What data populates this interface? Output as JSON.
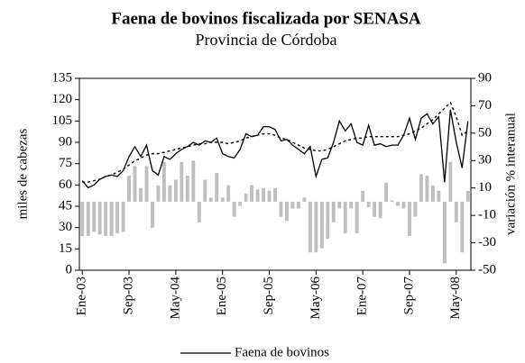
{
  "chart_data": {
    "type": "combo",
    "title": "Faena de bovinos fiscalizada por SENASA",
    "subtitle": "Provincia de Córdoba",
    "ylabel": "miles de cabezas",
    "y2label": "variación % interanual",
    "categories": [
      "Ene-03",
      null,
      null,
      null,
      null,
      null,
      null,
      null,
      "Sep-03",
      null,
      null,
      null,
      null,
      null,
      null,
      null,
      "May-04",
      null,
      null,
      null,
      null,
      null,
      null,
      null,
      "Ene-05",
      null,
      null,
      null,
      null,
      null,
      null,
      null,
      "Sep-05",
      null,
      null,
      null,
      null,
      null,
      null,
      null,
      "May-06",
      null,
      null,
      null,
      null,
      null,
      null,
      null,
      "Ene-07",
      null,
      null,
      null,
      null,
      null,
      null,
      null,
      "Sep-07",
      null,
      null,
      null,
      null,
      null,
      null,
      null,
      "May-08",
      null,
      null
    ],
    "series": [
      {
        "name": "Faena de bovinos",
        "kind": "line",
        "color": "#000000",
        "values": [
          63,
          58,
          60,
          64,
          66,
          67,
          66,
          70,
          80,
          87,
          80,
          88,
          70,
          67,
          80,
          78,
          82,
          85,
          87,
          90,
          88,
          91,
          90,
          93,
          82,
          80,
          79,
          85,
          96,
          94,
          95,
          101,
          101,
          99,
          91,
          92,
          88,
          85,
          82,
          87,
          66,
          78,
          79,
          90,
          105,
          98,
          103,
          90,
          88,
          102,
          88,
          89,
          87,
          88,
          88,
          95,
          107,
          92,
          107,
          110,
          103,
          108,
          62,
          113,
          90,
          72,
          105
        ]
      },
      {
        "kind": "dashed",
        "color": "#000000",
        "values": [
          62,
          62,
          63,
          64,
          66,
          67,
          69,
          71,
          74,
          77,
          79,
          81,
          82,
          82,
          83,
          84,
          85,
          86,
          87,
          88,
          89,
          89,
          90,
          90,
          90,
          89,
          90,
          91,
          93,
          94,
          95,
          96,
          96,
          95,
          93,
          92,
          90,
          88,
          86,
          85,
          84,
          84,
          85,
          87,
          89,
          91,
          92,
          93,
          93,
          94,
          94,
          94,
          94,
          94,
          94,
          95,
          96,
          98,
          100,
          103,
          106,
          110,
          114,
          118,
          108,
          95,
          98
        ]
      },
      {
        "kind": "bar",
        "axis": "y2",
        "color": "#bfbfbf",
        "values": [
          -25,
          -25,
          -22,
          -24,
          -25,
          -25,
          -23,
          -22,
          19,
          26,
          10,
          26,
          -19,
          12,
          29,
          12,
          16,
          29,
          19,
          30,
          -15,
          16,
          3,
          21,
          3,
          12,
          -11,
          -3,
          6,
          12,
          9,
          10,
          8,
          10,
          -11,
          -14,
          -5,
          -5,
          3,
          -37,
          -37,
          -34,
          -27,
          -15,
          -5,
          -23,
          -5,
          -23,
          8,
          -4,
          -11,
          -12,
          14,
          1,
          -3,
          -5,
          -25,
          -11,
          20,
          19,
          12,
          8,
          -45,
          29,
          -15,
          -37,
          8
        ]
      }
    ],
    "ylim": [
      0,
      135
    ],
    "yticks": [
      0,
      15,
      30,
      45,
      60,
      75,
      90,
      105,
      120,
      135
    ],
    "y2lim": [
      -50,
      90
    ],
    "y2ticks": [
      -50,
      -30,
      -10,
      10,
      30,
      50,
      70,
      90
    ],
    "legend": "bottom"
  }
}
